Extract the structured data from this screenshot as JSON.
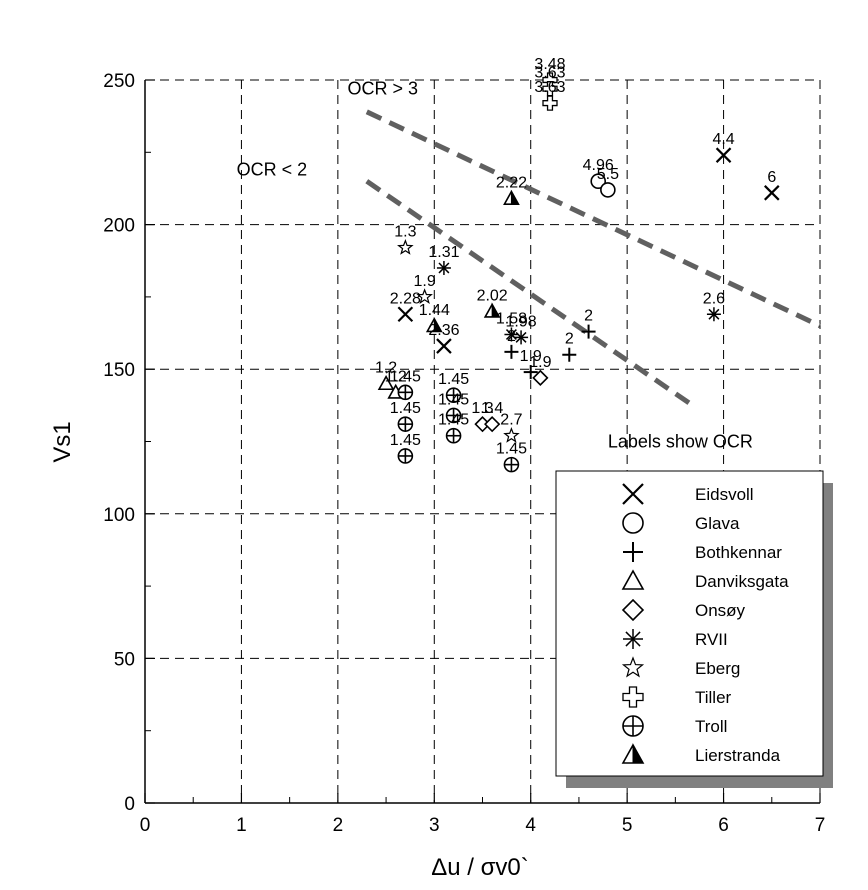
{
  "chart_data": {
    "type": "scatter",
    "title": "",
    "xlabel": "Δu / σv0`",
    "ylabel": "Vs1",
    "xlim": [
      0,
      7
    ],
    "ylim": [
      0,
      250
    ],
    "x_ticks": [
      0,
      1,
      2,
      3,
      4,
      5,
      6,
      7
    ],
    "y_ticks": [
      0,
      50,
      100,
      150,
      200,
      250
    ],
    "grid": "dashed",
    "legend_position": "lower-right",
    "annotations": [
      {
        "text": "OCR > 3",
        "x": 2.1,
        "y": 245
      },
      {
        "text": "OCR < 2",
        "x": 0.95,
        "y": 217
      },
      {
        "text": "Labels show OCR",
        "x": 4.8,
        "y": 123
      }
    ],
    "trend_lines": [
      {
        "name": "OCR > 3 boundary",
        "points": [
          [
            2.3,
            239
          ],
          [
            7.0,
            165
          ]
        ]
      },
      {
        "name": "OCR < 2 boundary",
        "points": [
          [
            2.3,
            215
          ],
          [
            5.7,
            137
          ]
        ]
      }
    ],
    "series": [
      {
        "name": "Eidsvoll",
        "marker": "x",
        "points": [
          {
            "x": 6.0,
            "y": 224,
            "label": "4.4"
          },
          {
            "x": 6.5,
            "y": 211,
            "label": "6"
          },
          {
            "x": 2.7,
            "y": 169,
            "label": "2.28"
          },
          {
            "x": 3.1,
            "y": 158,
            "label": "2.36"
          }
        ]
      },
      {
        "name": "Glava",
        "marker": "circle",
        "points": [
          {
            "x": 4.7,
            "y": 215,
            "label": "4.96"
          },
          {
            "x": 4.8,
            "y": 212,
            "label": "5.5"
          }
        ]
      },
      {
        "name": "Bothkennar",
        "marker": "plus",
        "points": [
          {
            "x": 4.6,
            "y": 163,
            "label": "2"
          },
          {
            "x": 4.4,
            "y": 155,
            "label": "2"
          },
          {
            "x": 4.0,
            "y": 149,
            "label": "1.9"
          },
          {
            "x": 3.8,
            "y": 156,
            "label": "2"
          }
        ]
      },
      {
        "name": "Danviksgata",
        "marker": "triangle",
        "points": [
          {
            "x": 2.5,
            "y": 145,
            "label": "1.2"
          },
          {
            "x": 2.6,
            "y": 142,
            "label": "1.2"
          }
        ]
      },
      {
        "name": "Onsøy",
        "marker": "diamond",
        "points": [
          {
            "x": 4.1,
            "y": 147,
            "label": "1.9"
          },
          {
            "x": 3.5,
            "y": 131,
            "label": "1.3"
          },
          {
            "x": 3.6,
            "y": 131,
            "label": "1.4"
          }
        ]
      },
      {
        "name": "RVII",
        "marker": "asterisk",
        "points": [
          {
            "x": 3.1,
            "y": 185,
            "label": "1.31"
          },
          {
            "x": 3.8,
            "y": 162,
            "label": "1.58"
          },
          {
            "x": 5.9,
            "y": 169,
            "label": "2.6"
          },
          {
            "x": 3.9,
            "y": 161,
            "label": "1.98"
          }
        ]
      },
      {
        "name": "Eberg",
        "marker": "star",
        "points": [
          {
            "x": 2.7,
            "y": 192,
            "label": "1.3"
          },
          {
            "x": 2.9,
            "y": 175,
            "label": "1.9"
          },
          {
            "x": 3.8,
            "y": 127,
            "label": "2.7"
          }
        ]
      },
      {
        "name": "Tiller",
        "marker": "cross",
        "points": [
          {
            "x": 4.2,
            "y": 250,
            "label": "3.48"
          },
          {
            "x": 4.2,
            "y": 247,
            "label": "3.63"
          },
          {
            "x": 4.2,
            "y": 242,
            "label": "3.63"
          }
        ]
      },
      {
        "name": "Troll",
        "marker": "circle-plus",
        "points": [
          {
            "x": 2.7,
            "y": 142,
            "label": "1.45"
          },
          {
            "x": 2.7,
            "y": 131,
            "label": "1.45"
          },
          {
            "x": 2.7,
            "y": 120,
            "label": "1.45"
          },
          {
            "x": 3.2,
            "y": 141,
            "label": "1.45"
          },
          {
            "x": 3.2,
            "y": 134,
            "label": "1.45"
          },
          {
            "x": 3.2,
            "y": 127,
            "label": "1.45"
          },
          {
            "x": 3.8,
            "y": 117,
            "label": "1.45"
          }
        ]
      },
      {
        "name": "Lierstranda",
        "marker": "half-triangle",
        "points": [
          {
            "x": 3.8,
            "y": 209,
            "label": "2.22"
          },
          {
            "x": 3.6,
            "y": 170,
            "label": "2.02"
          },
          {
            "x": 3.0,
            "y": 165,
            "label": "1.44"
          }
        ]
      }
    ]
  }
}
